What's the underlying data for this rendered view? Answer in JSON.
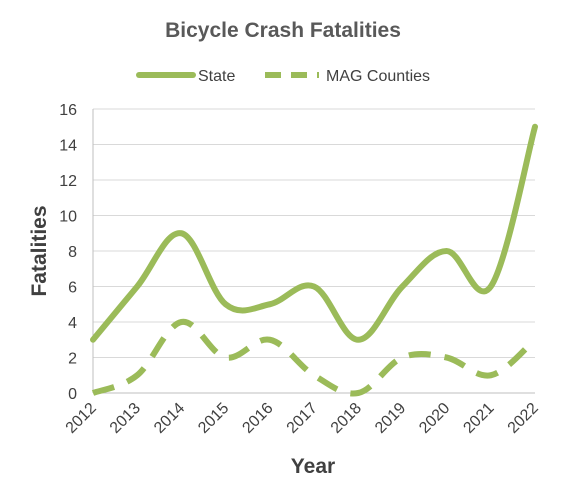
{
  "chart_data": {
    "type": "line",
    "title": "Bicycle Crash Fatalities",
    "xlabel": "Year",
    "ylabel": "Fatalities",
    "categories": [
      "2012",
      "2013",
      "2014",
      "2015",
      "2016",
      "2017",
      "2018",
      "2019",
      "2020",
      "2021",
      "2022"
    ],
    "y_ticks": [
      "0",
      "2",
      "4",
      "6",
      "8",
      "10",
      "12",
      "14",
      "16"
    ],
    "ylim": [
      0,
      16
    ],
    "grid": "horizontal",
    "legend_position": "top",
    "smooth": true,
    "series": [
      {
        "name": "State",
        "values": [
          3,
          6,
          9,
          5,
          5,
          6,
          3,
          6,
          8,
          6,
          15
        ],
        "color": "#9bbb59",
        "style": "solid"
      },
      {
        "name": "MAG Counties",
        "values": [
          0,
          1,
          4,
          2,
          3,
          1,
          0,
          2,
          2,
          1,
          3
        ],
        "color": "#9bbb59",
        "style": "dashed"
      }
    ]
  }
}
